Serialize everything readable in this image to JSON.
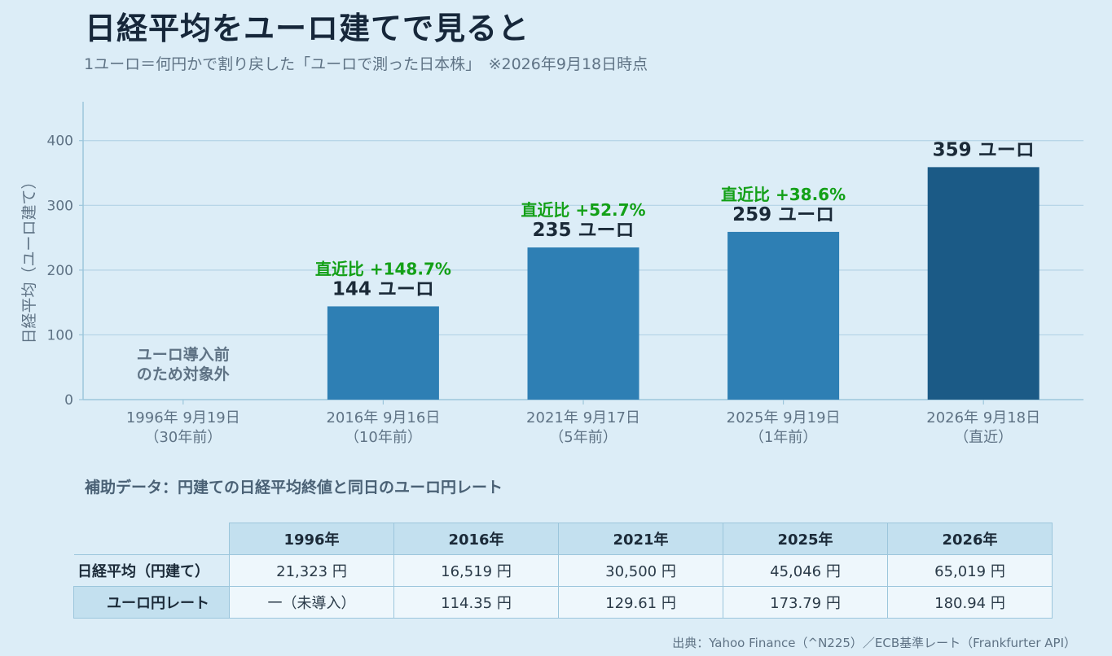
{
  "title": "日経平均をユーロ建てで見ると",
  "subtitle": "1ユーロ＝何円かで割り戻した「ユーロで測った日本株」　※2026年9月18日時点",
  "colors": {
    "bar": "#2e7fb4",
    "bar_latest": "#1b5a86",
    "growth": "#13a017",
    "grid": "#b3d3e6",
    "axis": "#9cc6dc",
    "text": "#1b2a38",
    "muted": "#5f7385"
  },
  "chart_data": {
    "type": "bar",
    "ylabel": "日経平均（ユーロ建て）",
    "ylim": [
      0,
      460
    ],
    "yticks": [
      0,
      100,
      200,
      300,
      400
    ],
    "grid": true,
    "categories": [
      {
        "date": "1996年 9月19日",
        "note": "（30年前）"
      },
      {
        "date": "2016年 9月16日",
        "note": "（10年前）"
      },
      {
        "date": "2021年 9月17日",
        "note": "（5年前）"
      },
      {
        "date": "2025年 9月19日",
        "note": "（1年前）"
      },
      {
        "date": "2026年 9月18日",
        "note": "（直近）"
      }
    ],
    "values": [
      null,
      144,
      235,
      259,
      359
    ],
    "value_labels": [
      "",
      "144 ユーロ",
      "235 ユーロ",
      "259 ユーロ",
      "359 ユーロ"
    ],
    "growth_labels": [
      "",
      "直近比 +148.7%",
      "直近比 +52.7%",
      "直近比 +38.6%",
      ""
    ],
    "na_label": [
      "ユーロ導入前",
      "のため対象外"
    ]
  },
  "table": {
    "heading": "補助データ：円建ての日経平均終値と同日のユーロ円レート",
    "years": [
      "1996年",
      "2016年",
      "2021年",
      "2025年",
      "2026年"
    ],
    "rows": [
      {
        "label": "日経平均（円建て）",
        "values": [
          "21,323 円",
          "16,519 円",
          "30,500 円",
          "45,046 円",
          "65,019 円"
        ]
      },
      {
        "label": "ユーロ円レート",
        "values": [
          "一（未導入）",
          "114.35 円",
          "129.61 円",
          "173.79 円",
          "180.94 円"
        ]
      }
    ]
  },
  "source": "出典：Yahoo Finance（^N225）／ECB基準レート（Frankfurter API）"
}
